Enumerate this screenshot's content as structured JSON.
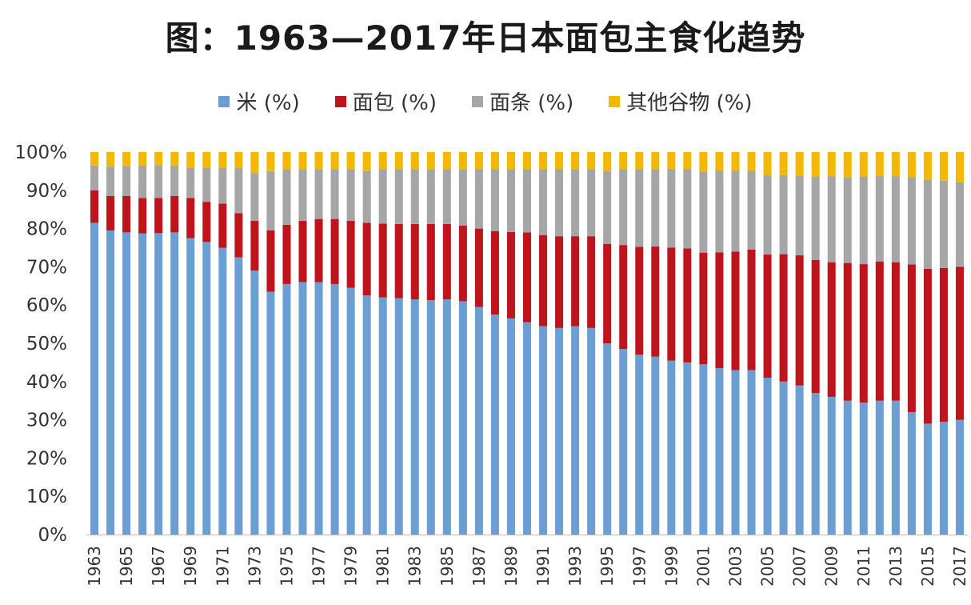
{
  "chart_data": {
    "type": "bar",
    "stacked": true,
    "title": "图：1963—2017年日本面包主食化趋势",
    "ylim": [
      0,
      100
    ],
    "yticks": [
      "0%",
      "10%",
      "20%",
      "30%",
      "40%",
      "50%",
      "60%",
      "70%",
      "80%",
      "90%",
      "100%"
    ],
    "legend_position": "top",
    "categories": [
      "1963",
      "1964",
      "1965",
      "1966",
      "1967",
      "1968",
      "1969",
      "1970",
      "1971",
      "1972",
      "1973",
      "1974",
      "1975",
      "1976",
      "1977",
      "1978",
      "1979",
      "1980",
      "1981",
      "1982",
      "1983",
      "1984",
      "1985",
      "1986",
      "1987",
      "1988",
      "1989",
      "1990",
      "1991",
      "1992",
      "1993",
      "1994",
      "1995",
      "1996",
      "1997",
      "1998",
      "1999",
      "2000",
      "2001",
      "2002",
      "2003",
      "2004",
      "2005",
      "2006",
      "2007",
      "2008",
      "2009",
      "2010",
      "2011",
      "2012",
      "2013",
      "2014",
      "2015",
      "2016",
      "2017"
    ],
    "series": [
      {
        "name": "米 (%)",
        "color": "#6b9fd4",
        "values": [
          81.5,
          79.5,
          79,
          78.7,
          78.8,
          79,
          77.5,
          76.5,
          75,
          72.5,
          69,
          63.5,
          65.5,
          66,
          66,
          65.5,
          64.5,
          62.5,
          62,
          61.8,
          61.5,
          61.3,
          61.5,
          61,
          59.5,
          57.5,
          56.5,
          55.5,
          54.5,
          54,
          54.5,
          54,
          50,
          48.5,
          47,
          46.5,
          45.5,
          45,
          44.5,
          43.5,
          43,
          43,
          41,
          40,
          39,
          37,
          36,
          35,
          34.5,
          35,
          35,
          32,
          29,
          29.5,
          30
        ]
      },
      {
        "name": "面包 (%)",
        "color": "#c0141c",
        "values": [
          8.5,
          9,
          9.5,
          9.3,
          9.2,
          9.5,
          10.5,
          10.5,
          11.5,
          11.5,
          13,
          16,
          15.5,
          16,
          16.5,
          17,
          17.5,
          19,
          19.3,
          19.4,
          19.7,
          19.9,
          19.7,
          19.8,
          20.5,
          21.8,
          22.6,
          23.5,
          23.8,
          24,
          23.5,
          24,
          26,
          27.2,
          28.2,
          28.8,
          29.5,
          29.8,
          29.2,
          30.3,
          31,
          31.5,
          32.2,
          33.3,
          34,
          34.8,
          35.2,
          36,
          36.2,
          36.4,
          36.2,
          38.6,
          40.5,
          40.2,
          40
        ]
      },
      {
        "name": "面条 (%)",
        "color": "#a6a6a6",
        "values": [
          6.5,
          7.7,
          7.8,
          8.5,
          8.6,
          8,
          7.9,
          8.9,
          9.3,
          11.8,
          12.5,
          15.5,
          14.5,
          13.5,
          13,
          13,
          13.5,
          13.5,
          14.2,
          14.3,
          14.3,
          14.3,
          14.3,
          14.7,
          15.5,
          16.2,
          16.4,
          16.5,
          17.2,
          17.5,
          17.5,
          17.5,
          19,
          19.8,
          20.3,
          20.2,
          20.6,
          20.8,
          21.2,
          21.4,
          21.2,
          20.6,
          20.8,
          20.7,
          20.8,
          21.8,
          22.5,
          22.3,
          22.9,
          22.3,
          22.5,
          22.9,
          23.3,
          22.8,
          22.2
        ]
      },
      {
        "name": "其他谷物 (%)",
        "color": "#f5b800",
        "values": [
          3.5,
          3.8,
          3.7,
          3.5,
          3.4,
          3.5,
          4.1,
          4.1,
          4.2,
          4.2,
          5.5,
          5,
          4.5,
          4.5,
          4.5,
          4.5,
          4.5,
          5,
          4.5,
          4.5,
          4.5,
          4.5,
          4.5,
          4.5,
          4.5,
          4.5,
          4.5,
          4.5,
          4.5,
          4.5,
          4.5,
          4.5,
          5,
          4.5,
          4.5,
          4.5,
          4.4,
          4.4,
          5.1,
          4.8,
          4.8,
          4.9,
          6,
          6,
          6.2,
          6.4,
          6.3,
          6.7,
          6.4,
          6.3,
          6.3,
          6.5,
          7.2,
          7.5,
          7.8
        ]
      }
    ]
  }
}
